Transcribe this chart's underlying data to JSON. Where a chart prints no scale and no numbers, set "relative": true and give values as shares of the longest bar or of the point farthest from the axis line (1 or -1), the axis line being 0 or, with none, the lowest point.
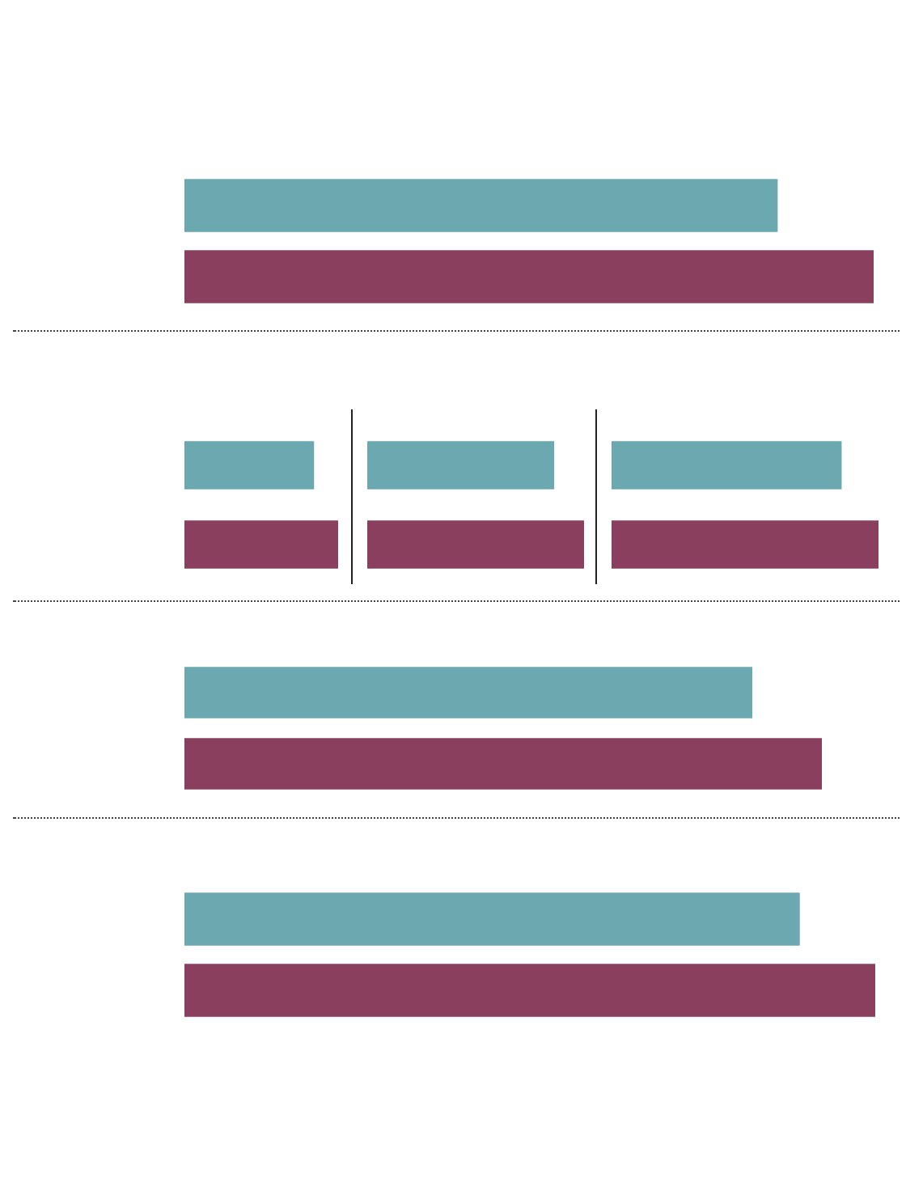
{
  "chart_data": [
    {
      "type": "bar",
      "orientation": "horizontal",
      "relative": true,
      "categories": [
        null,
        null
      ],
      "values": [
        0.86,
        1
      ],
      "colors": [
        "#6ba8b0",
        "#8b3f5f"
      ]
    },
    {
      "type": "bar",
      "orientation": "horizontal",
      "relative": true,
      "categories": [
        null,
        null
      ],
      "values": [
        0.84,
        1
      ],
      "colors": [
        "#6ba8b0",
        "#8b3f5f"
      ]
    },
    {
      "type": "bar",
      "orientation": "horizontal",
      "relative": true,
      "categories": [
        null,
        null
      ],
      "values": [
        0.86,
        1
      ],
      "colors": [
        "#6ba8b0",
        "#8b3f5f"
      ]
    },
    {
      "type": "bar",
      "orientation": "horizontal",
      "relative": true,
      "categories": [
        null,
        null
      ],
      "values": [
        0.86,
        1
      ],
      "colors": [
        "#6ba8b0",
        "#8b3f5f"
      ]
    },
    {
      "type": "bar",
      "orientation": "horizontal",
      "relative": true,
      "categories": [
        null,
        null
      ],
      "values": [
        0.89,
        1
      ],
      "colors": [
        "#6ba8b0",
        "#8b3f5f"
      ]
    },
    {
      "type": "bar",
      "orientation": "horizontal",
      "relative": true,
      "categories": [
        null,
        null
      ],
      "values": [
        0.89,
        1
      ],
      "colors": [
        "#6ba8b0",
        "#8b3f5f"
      ]
    }
  ]
}
